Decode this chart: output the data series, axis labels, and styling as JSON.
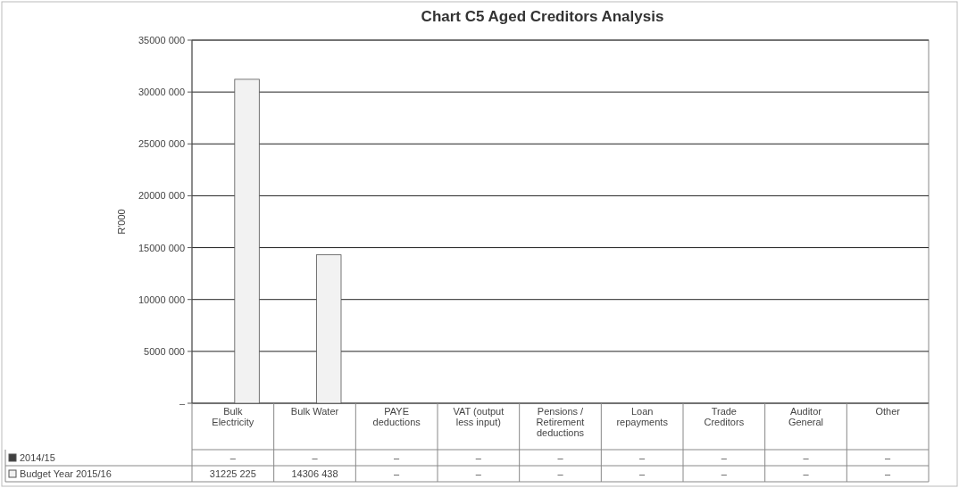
{
  "chart_data": {
    "type": "bar",
    "title": "Chart C5 Aged Creditors Analysis",
    "ylabel": "R'000",
    "categories": [
      "Bulk Electricity",
      "Bulk Water",
      "PAYE deductions",
      "VAT (output less input)",
      "Pensions / Retirement deductions",
      "Loan repayments",
      "Trade Creditors",
      "Auditor General",
      "Other"
    ],
    "series": [
      {
        "name": "2014/15",
        "color": "#404040",
        "values": [
          0,
          0,
          0,
          0,
          0,
          0,
          0,
          0,
          0
        ],
        "value_labels": [
          "–",
          "–",
          "–",
          "–",
          "–",
          "–",
          "–",
          "–",
          "–"
        ]
      },
      {
        "name": "Budget Year 2015/16",
        "color": "#f2f2f2",
        "values": [
          31225225,
          14306438,
          0,
          0,
          0,
          0,
          0,
          0,
          0
        ],
        "value_labels": [
          "31225 225",
          "14306 438",
          "–",
          "–",
          "–",
          "–",
          "–",
          "–",
          "–"
        ]
      }
    ],
    "ylim": [
      0,
      35000000
    ],
    "yticks": [
      {
        "value": 0,
        "label": "–"
      },
      {
        "value": 5000000,
        "label": "5000 000"
      },
      {
        "value": 10000000,
        "label": "10000 000"
      },
      {
        "value": 15000000,
        "label": "15000 000"
      },
      {
        "value": 20000000,
        "label": "20000 000"
      },
      {
        "value": 25000000,
        "label": "25000 000"
      },
      {
        "value": 30000000,
        "label": "30000 000"
      },
      {
        "value": 35000000,
        "label": "35000 000"
      }
    ],
    "grid": "y",
    "legend": "bottom"
  }
}
